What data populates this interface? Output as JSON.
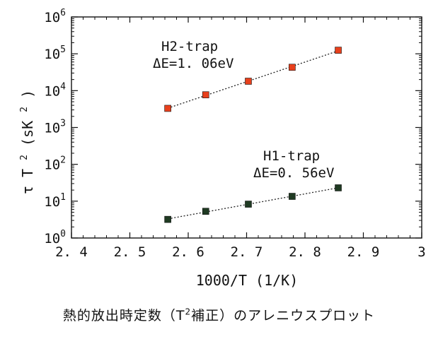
{
  "chart_data": {
    "type": "scatter",
    "x_axis": {
      "label": "1000/T (1/K)",
      "range": [
        2.4,
        3.0
      ],
      "ticks": [
        2.4,
        2.5,
        2.6,
        2.7,
        2.8,
        2.9,
        3.0
      ],
      "tick_labels": [
        "2. 4",
        "2. 5",
        "2. 6",
        "2. 7",
        "2. 8",
        "2. 9",
        "3"
      ]
    },
    "y_axis": {
      "label_parts": [
        "τ T",
        "2",
        " (sK",
        "2",
        ")"
      ],
      "scale": "log",
      "range": [
        1,
        1000000
      ],
      "ticks": [
        1,
        10,
        100,
        1000,
        10000,
        100000,
        1000000
      ],
      "tick_labels": [
        {
          "base": "10",
          "exp": "0"
        },
        {
          "base": "10",
          "exp": "1"
        },
        {
          "base": "10",
          "exp": "2"
        },
        {
          "base": "10",
          "exp": "3"
        },
        {
          "base": "10",
          "exp": "4"
        },
        {
          "base": "10",
          "exp": "5"
        },
        {
          "base": "10",
          "exp": "6"
        }
      ]
    },
    "grid": false,
    "series": [
      {
        "name": "H2-trap",
        "annotation": "ΔE=1. 06eV",
        "color": "#e8401c",
        "marker": "square",
        "fit_line": "dotted",
        "x": [
          2.565,
          2.63,
          2.703,
          2.778,
          2.857
        ],
        "y": [
          3300,
          7700,
          18000,
          43000,
          125000
        ]
      },
      {
        "name": "H1-trap",
        "annotation": "ΔE=0. 56eV",
        "color": "#1f3a22",
        "marker": "square",
        "fit_line": "dotted",
        "x": [
          2.565,
          2.63,
          2.703,
          2.778,
          2.857
        ],
        "y": [
          3.2,
          5.3,
          8.3,
          13.5,
          23
        ]
      }
    ]
  },
  "caption": {
    "pre": "熱的放出時定数（T",
    "sup": "2",
    "post": "補正）のアレニウスプロット"
  }
}
